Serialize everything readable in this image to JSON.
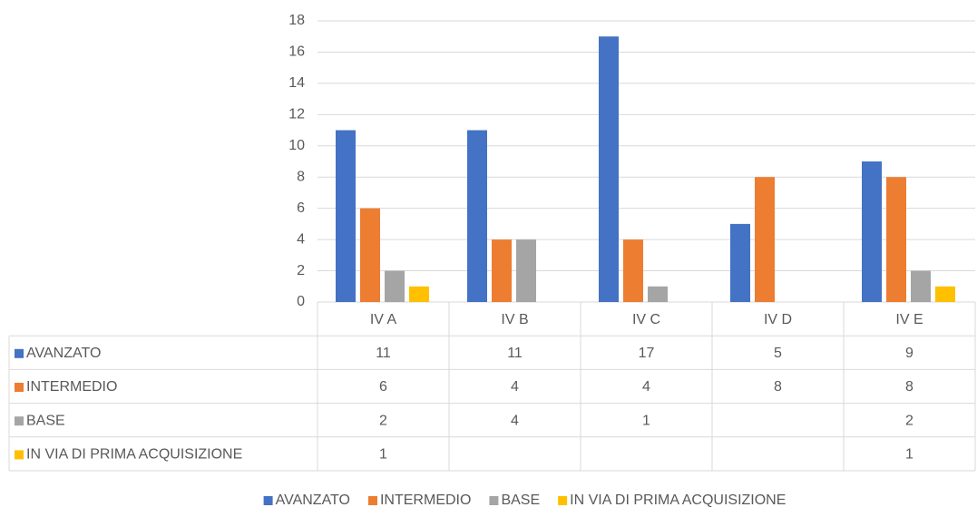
{
  "chart_data": {
    "type": "bar",
    "categories": [
      "IV A",
      "IV B",
      "IV C",
      "IV D",
      "IV E"
    ],
    "series": [
      {
        "name": "AVANZATO",
        "color": "#4472c4",
        "values": [
          11,
          11,
          17,
          5,
          9
        ]
      },
      {
        "name": "INTERMEDIO",
        "color": "#ed7d31",
        "values": [
          6,
          4,
          4,
          8,
          8
        ]
      },
      {
        "name": "BASE",
        "color": "#a5a5a5",
        "values": [
          2,
          4,
          1,
          null,
          2
        ]
      },
      {
        "name": "IN VIA DI PRIMA ACQUISIZIONE",
        "color": "#ffc000",
        "values": [
          1,
          null,
          null,
          null,
          1
        ]
      }
    ],
    "ylim": [
      0,
      18
    ],
    "yticks": [
      0,
      2,
      4,
      6,
      8,
      10,
      12,
      14,
      16,
      18
    ],
    "grid": true,
    "data_table": true,
    "legend": "bottom"
  }
}
